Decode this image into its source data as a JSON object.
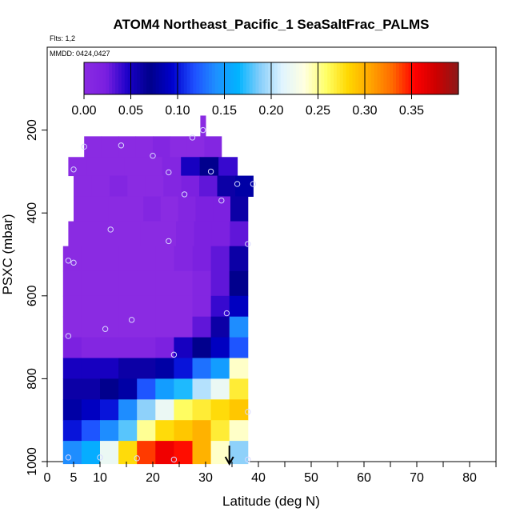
{
  "chart_data": {
    "type": "heatmap",
    "title": "ATOM4 Northeast_Pacific_1 SeaSaltFrac_PALMS",
    "flights_label": "Flts: 1,2",
    "dates_label": "MMDD: 0424,0427",
    "xlabel": "Latitude (deg N)",
    "ylabel": "PSXC (mbar)",
    "xlim": [
      0,
      85
    ],
    "ylim": [
      1000,
      0
    ],
    "x_ticks": [
      0,
      5,
      10,
      20,
      30,
      40,
      50,
      60,
      70,
      80
    ],
    "y_ticks": [
      200,
      400,
      600,
      800,
      1000
    ],
    "colorbar": {
      "min": 0.0,
      "max": 0.4,
      "ticks": [
        "0.00",
        "0.05",
        "0.10",
        "0.15",
        "0.20",
        "0.25",
        "0.30",
        "0.35"
      ],
      "tick_values": [
        0.0,
        0.05,
        0.1,
        0.15,
        0.2,
        0.25,
        0.3,
        0.35
      ],
      "colors": [
        "#8a2be2",
        "#7a1fe0",
        "#1a00c8",
        "#00008b",
        "#0000cd",
        "#1e4fff",
        "#1e90ff",
        "#00b4ff",
        "#87cefa",
        "#e0f4ff",
        "#ffffe0",
        "#ffff66",
        "#ffd700",
        "#ffa500",
        "#ff6a00",
        "#ff0000",
        "#cc0000",
        "#8b1a1a"
      ]
    },
    "layers": [
      {
        "p_top": 165,
        "p_bot": 215,
        "lat_min": 29,
        "lat_max": 30,
        "values": [
          0.0
        ]
      },
      {
        "p_top": 215,
        "p_bot": 265,
        "lat_min": 7,
        "lat_max": 33,
        "values": [
          0.0,
          0.0,
          0.0,
          0.0,
          0.01,
          0.0,
          0.0,
          0.01
        ]
      },
      {
        "p_top": 265,
        "p_bot": 310,
        "lat_min": 4,
        "lat_max": 36,
        "values": [
          0.0,
          0.0,
          0.0,
          0.0,
          0.0,
          0.01,
          0.05,
          0.07,
          0.04
        ]
      },
      {
        "p_top": 310,
        "p_bot": 360,
        "lat_min": 5,
        "lat_max": 39,
        "values": [
          0.0,
          0.0,
          0.01,
          0.0,
          0.0,
          0.01,
          0.02,
          0.03,
          0.06,
          0.08
        ]
      },
      {
        "p_top": 360,
        "p_bot": 420,
        "lat_min": 5,
        "lat_max": 38,
        "values": [
          0.0,
          0.0,
          0.0,
          0.0,
          0.01,
          0.0,
          0.01,
          0.02,
          0.02,
          0.06
        ]
      },
      {
        "p_top": 420,
        "p_bot": 480,
        "lat_min": 4,
        "lat_max": 38,
        "values": [
          0.0,
          0.0,
          0.0,
          0.0,
          0.0,
          0.0,
          0.01,
          0.02,
          0.02,
          0.03
        ]
      },
      {
        "p_top": 480,
        "p_bot": 540,
        "lat_min": 3,
        "lat_max": 38,
        "values": [
          0.0,
          0.0,
          0.0,
          0.0,
          0.0,
          0.0,
          0.01,
          0.02,
          0.03,
          0.06
        ]
      },
      {
        "p_top": 540,
        "p_bot": 600,
        "lat_min": 3,
        "lat_max": 38,
        "values": [
          0.0,
          0.0,
          0.0,
          0.0,
          0.0,
          0.0,
          0.0,
          0.01,
          0.03,
          0.07
        ]
      },
      {
        "p_top": 600,
        "p_bot": 650,
        "lat_min": 3,
        "lat_max": 38,
        "values": [
          0.0,
          0.0,
          0.0,
          0.0,
          0.0,
          0.0,
          0.0,
          0.01,
          0.04,
          0.09
        ]
      },
      {
        "p_top": 650,
        "p_bot": 700,
        "lat_min": 3,
        "lat_max": 38,
        "values": [
          0.0,
          0.0,
          0.0,
          0.0,
          0.0,
          0.0,
          0.0,
          0.03,
          0.06,
          0.14
        ]
      },
      {
        "p_top": 700,
        "p_bot": 750,
        "lat_min": 3,
        "lat_max": 38,
        "values": [
          0.02,
          0.01,
          0.01,
          0.01,
          0.01,
          0.02,
          0.05,
          0.07,
          0.09,
          0.12
        ]
      },
      {
        "p_top": 750,
        "p_bot": 800,
        "lat_min": 3,
        "lat_max": 38,
        "values": [
          0.05,
          0.05,
          0.05,
          0.06,
          0.06,
          0.08,
          0.1,
          0.13,
          0.15,
          0.24
        ]
      },
      {
        "p_top": 800,
        "p_bot": 850,
        "lat_min": 3,
        "lat_max": 38,
        "values": [
          0.06,
          0.06,
          0.07,
          0.08,
          0.12,
          0.15,
          0.17,
          0.2,
          0.22,
          0.27
        ]
      },
      {
        "p_top": 850,
        "p_bot": 900,
        "lat_min": 3,
        "lat_max": 38,
        "values": [
          0.08,
          0.09,
          0.1,
          0.14,
          0.19,
          0.22,
          0.26,
          0.27,
          0.28,
          0.29
        ]
      },
      {
        "p_top": 900,
        "p_bot": 950,
        "lat_min": 3,
        "lat_max": 38,
        "values": [
          0.1,
          0.12,
          0.14,
          0.18,
          0.25,
          0.28,
          0.29,
          0.3,
          0.27,
          0.24
        ]
      },
      {
        "p_top": 950,
        "p_bot": 1005,
        "lat_min": 3,
        "lat_max": 38,
        "values": [
          0.14,
          0.16,
          0.22,
          0.28,
          0.34,
          0.36,
          0.35,
          0.3,
          0.24,
          0.19
        ]
      }
    ],
    "sample_points": [
      {
        "lat": 29.5,
        "p": 200
      },
      {
        "lat": 27.5,
        "p": 218
      },
      {
        "lat": 7,
        "p": 240
      },
      {
        "lat": 14,
        "p": 237
      },
      {
        "lat": 20,
        "p": 262
      },
      {
        "lat": 5,
        "p": 295
      },
      {
        "lat": 23,
        "p": 302
      },
      {
        "lat": 31,
        "p": 300
      },
      {
        "lat": 36,
        "p": 330
      },
      {
        "lat": 39,
        "p": 330
      },
      {
        "lat": 26,
        "p": 355
      },
      {
        "lat": 33,
        "p": 370
      },
      {
        "lat": 12,
        "p": 440
      },
      {
        "lat": 23,
        "p": 468
      },
      {
        "lat": 38,
        "p": 475
      },
      {
        "lat": 4,
        "p": 515
      },
      {
        "lat": 5,
        "p": 520
      },
      {
        "lat": 16,
        "p": 658
      },
      {
        "lat": 34,
        "p": 642
      },
      {
        "lat": 11,
        "p": 680
      },
      {
        "lat": 4,
        "p": 697
      },
      {
        "lat": 24,
        "p": 742
      },
      {
        "lat": 38,
        "p": 880
      },
      {
        "lat": 4,
        "p": 990
      },
      {
        "lat": 10,
        "p": 990
      },
      {
        "lat": 17,
        "p": 992
      },
      {
        "lat": 24,
        "p": 995
      },
      {
        "lat": 38,
        "p": 995
      }
    ],
    "marker_arrow": {
      "lat": 34.5,
      "p": 1000
    }
  }
}
